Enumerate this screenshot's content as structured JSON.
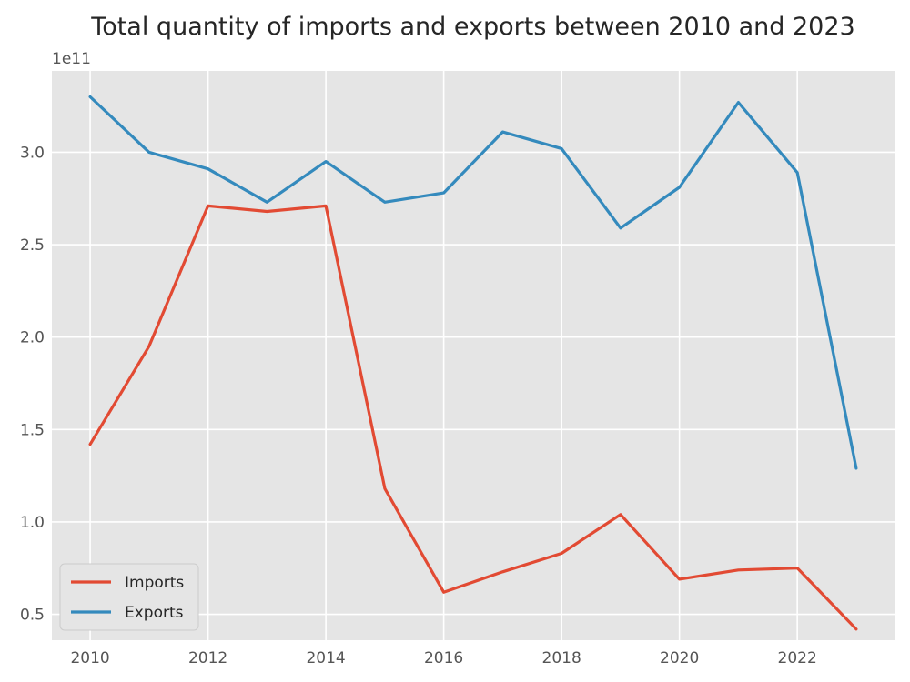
{
  "chart_data": {
    "type": "line",
    "title": "Total quantity of imports and exports between 2010 and 2023",
    "xlabel": "",
    "ylabel": "",
    "offset_label": "1e11",
    "x": [
      2010,
      2011,
      2012,
      2013,
      2014,
      2015,
      2016,
      2017,
      2018,
      2019,
      2020,
      2021,
      2022,
      2023
    ],
    "x_ticks": [
      2010,
      2012,
      2014,
      2016,
      2018,
      2020,
      2022
    ],
    "y_ticks": [
      0.5,
      1.0,
      1.5,
      2.0,
      2.5,
      3.0
    ],
    "y_tick_labels": [
      "0.5",
      "1.0",
      "1.5",
      "2.0",
      "2.5",
      "3.0"
    ],
    "xlim": [
      2009.35,
      2023.65
    ],
    "ylim": [
      0.36,
      3.44
    ],
    "grid": true,
    "legend_position": "lower-left",
    "series": [
      {
        "name": "Imports",
        "color": "#e24a33",
        "values": [
          1.42,
          1.95,
          2.71,
          2.68,
          2.71,
          1.18,
          0.62,
          0.73,
          0.83,
          1.04,
          0.69,
          0.74,
          0.75,
          0.42
        ]
      },
      {
        "name": "Exports",
        "color": "#348abd",
        "values": [
          3.3,
          3.0,
          2.91,
          2.73,
          2.95,
          2.73,
          2.78,
          3.11,
          3.02,
          2.59,
          2.81,
          3.27,
          2.89,
          1.29
        ]
      }
    ]
  }
}
